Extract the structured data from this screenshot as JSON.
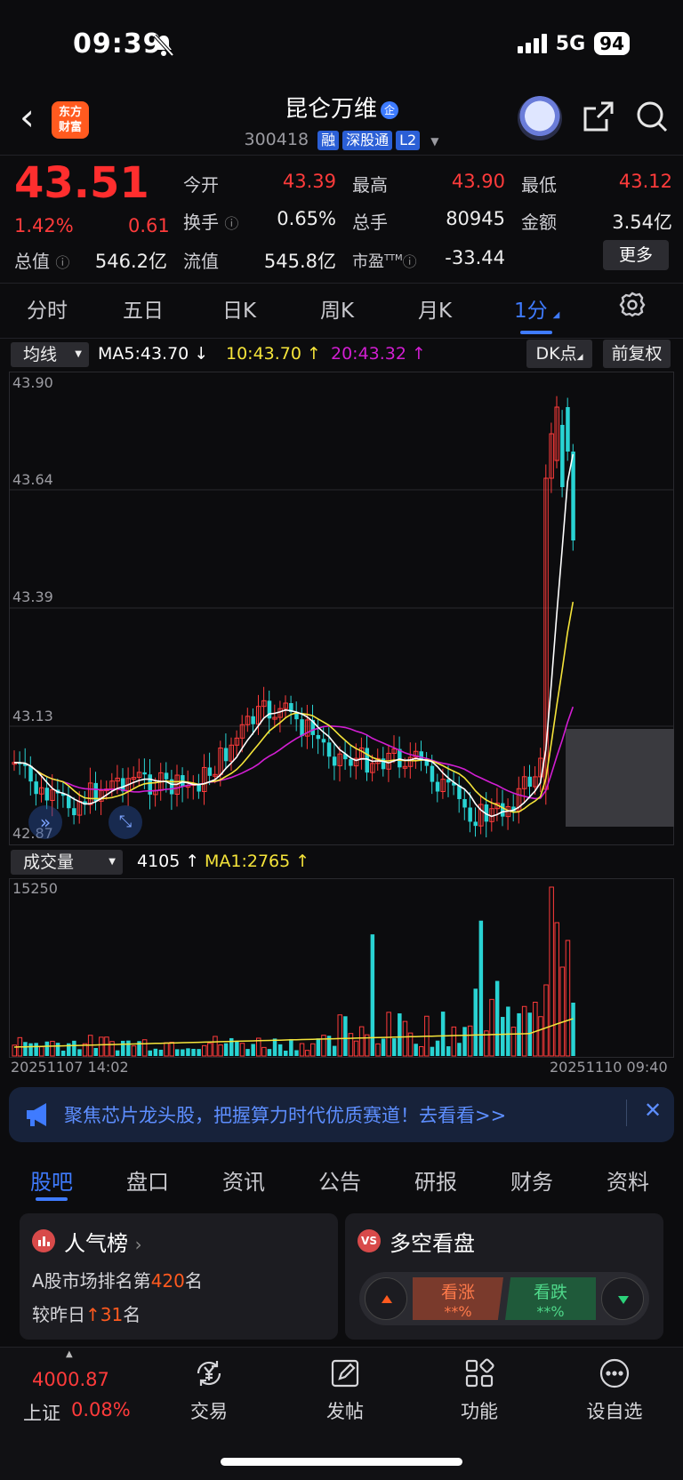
{
  "status": {
    "time": "09:39",
    "network": "5G",
    "battery": "94"
  },
  "header": {
    "brand": [
      "东方",
      "财富"
    ],
    "stock_name": "昆仑万维",
    "corp_badge": "企",
    "code": "300418",
    "tags": [
      "融",
      "深股通",
      "L2"
    ]
  },
  "quote": {
    "price": "43.51",
    "change_pct": "1.42%",
    "change": "0.61",
    "open_label": "今开",
    "open": "43.39",
    "high_label": "最高",
    "high": "43.90",
    "low_label": "最低",
    "low": "43.12",
    "turnover_label": "换手",
    "turnover": "0.65%",
    "volume_label": "总手",
    "volume": "80945",
    "amount_label": "金额",
    "amount": "3.54亿",
    "mcap_label": "总值",
    "mcap": "546.2亿",
    "float_label": "流值",
    "float": "545.8亿",
    "pe_label": "市盈",
    "pe_sup": "TTM",
    "pe": "-33.44",
    "more": "更多"
  },
  "tabs": [
    "分时",
    "五日",
    "日K",
    "周K",
    "月K",
    "1分"
  ],
  "active_tab": "1分",
  "indicators": {
    "select": "均线",
    "ma5": "MA5:43.70",
    "ma10": "10:43.70",
    "ma20": "20:43.32",
    "dk": "DK点",
    "adjust": "前复权",
    "ma5_color": "#ffffff",
    "ma10_color": "#f5e43a",
    "ma20_color": "#d21ed2"
  },
  "chart_data": [
    {
      "type": "candlestick",
      "y_ticks": [
        "43.90",
        "43.64",
        "43.39",
        "43.13",
        "42.87"
      ],
      "ylim": [
        42.87,
        43.9
      ],
      "legend": [
        "MA5:43.70",
        "10:43.70",
        "20:43.32"
      ]
    },
    {
      "type": "bar",
      "title": "成交量",
      "legend": [
        "4105",
        "MA1:2765"
      ],
      "y_ticks": [
        "15250"
      ],
      "x_ticks": [
        "20251107 14:02",
        "20251110 09:40"
      ]
    }
  ],
  "volume": {
    "select": "成交量",
    "value": "4105",
    "ma": "MA1:2765",
    "max": "15250"
  },
  "time_axis": {
    "start": "20251107 14:02",
    "end": "20251110 09:40"
  },
  "banner": {
    "text": "聚焦芯片龙头股，把握算力时代优质赛道！去看看>>"
  },
  "bottom_tabs": [
    "股吧",
    "盘口",
    "资讯",
    "公告",
    "研报",
    "财务",
    "资料"
  ],
  "active_bottom_tab": "股吧",
  "popular": {
    "title": "人气榜",
    "line1_prefix": "A股市场排名第",
    "rank": "420",
    "line1_suffix": "名",
    "line2_prefix": "较昨日",
    "delta": "31",
    "line2_suffix": "名"
  },
  "sentiment": {
    "title": "多空看盘",
    "badge": "VS",
    "up_label": "看涨",
    "up_value": "**%",
    "down_label": "看跌",
    "down_value": "**%"
  },
  "index_bar": {
    "value": "4000.87",
    "name": "上证",
    "pct": "0.08%"
  },
  "nav": [
    {
      "label": "交易",
      "icon": "yen-trade-icon"
    },
    {
      "label": "发帖",
      "icon": "edit-post-icon"
    },
    {
      "label": "功能",
      "icon": "grid-function-icon"
    },
    {
      "label": "设自选",
      "icon": "more-dots-icon"
    }
  ]
}
